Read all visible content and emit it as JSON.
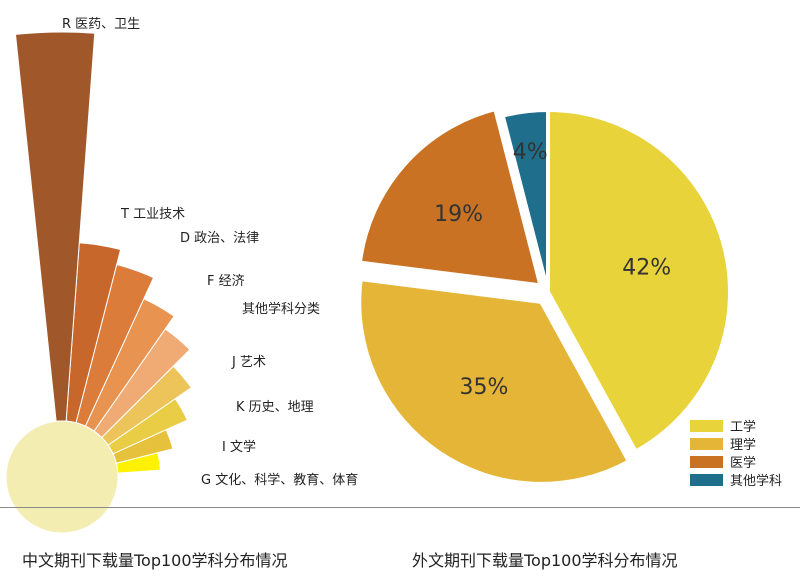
{
  "chart_data": [
    {
      "type": "bar",
      "layout": "radial",
      "title": "",
      "categories": [
        "R 医药、卫生",
        "T 工业技术",
        "D 政治、法律",
        "F 经济",
        "其他学科分类",
        "J 艺术",
        "K 历史、地理",
        "I 文学",
        "G 文化、科学、教育、体育"
      ],
      "values": [
        100,
        46,
        42,
        36,
        32,
        26,
        21,
        15,
        11
      ],
      "colors": [
        "#A0582A",
        "#C8672C",
        "#DB7C3A",
        "#E8934F",
        "#EFAB73",
        "#EDC45A",
        "#E9CD45",
        "#E6C13B",
        "#FFF200"
      ],
      "hub_color": "#F3EDB2",
      "grid": false,
      "legend": "none"
    },
    {
      "type": "pie",
      "title": "",
      "labels": [
        "工学",
        "理学",
        "医学",
        "其他学科"
      ],
      "values": [
        42,
        35,
        19,
        4
      ],
      "value_labels": [
        "42%",
        "35%",
        "19%",
        "4%"
      ],
      "colors": [
        "#E8D33A",
        "#E5B537",
        "#CA7224",
        "#1F6E8C"
      ],
      "legend": "bottom-right"
    }
  ],
  "captions": {
    "left": "中文期刊下载量Top100学科分布情况",
    "right": "外文期刊下载量Top100学科分布情况"
  }
}
